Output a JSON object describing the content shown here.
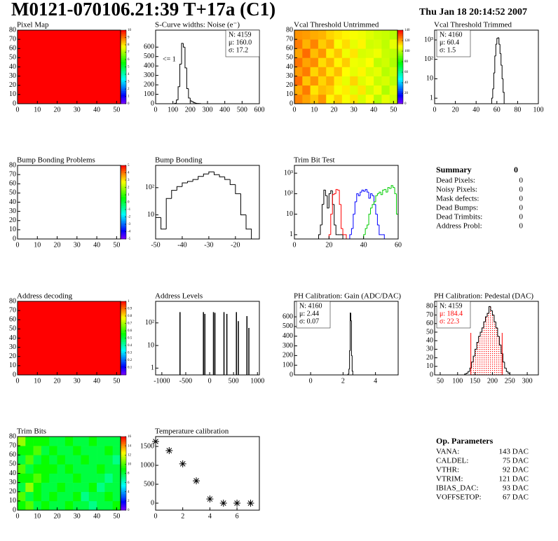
{
  "header": {
    "title": "M0121-070106.21:39 T+17a (C1)",
    "date": "Thu Jan 18 20:14:52 2007"
  },
  "chart_data": [
    {
      "type": "heatmap",
      "title": "Pixel Map",
      "xlim": [
        0,
        52
      ],
      "ylim": [
        0,
        80
      ],
      "xticks": [
        0,
        10,
        20,
        30,
        40,
        50
      ],
      "yticks": [
        0,
        10,
        20,
        30,
        40,
        50,
        60,
        70,
        80
      ],
      "zlim": [
        0,
        10
      ],
      "zticks": [
        0,
        1,
        2,
        3,
        4,
        5,
        6,
        7,
        8,
        9,
        10
      ],
      "z": [
        [
          10
        ]
      ]
    },
    {
      "type": "histogram",
      "title": "S-Curve widths: Noise (e⁻)",
      "xlim": [
        0,
        600
      ],
      "ylim": [
        0,
        780
      ],
      "xticks": [
        0,
        100,
        200,
        300,
        400,
        500,
        600
      ],
      "yticks": [
        0,
        100,
        200,
        300,
        400,
        500,
        600
      ],
      "color": "#000000",
      "bins": [
        110,
        120,
        130,
        140,
        150,
        160,
        170,
        180,
        190,
        200,
        210,
        220,
        230,
        240,
        250,
        260
      ],
      "values": [
        5,
        40,
        180,
        420,
        640,
        600,
        380,
        160,
        60,
        30,
        20,
        10,
        5,
        3,
        2
      ],
      "stats": [
        {
          "text": "N: 4159"
        },
        {
          "text": "μ: 160.0"
        },
        {
          "text": "σ: 17.2"
        }
      ],
      "annotation": "<= 1"
    },
    {
      "type": "heatmap",
      "title": "Vcal Threshold Untrimmed",
      "xlim": [
        0,
        52
      ],
      "ylim": [
        0,
        80
      ],
      "xticks": [
        0,
        10,
        20,
        30,
        40,
        50
      ],
      "yticks": [
        0,
        10,
        20,
        30,
        40,
        50,
        60,
        70,
        80
      ],
      "zlim": [
        0,
        140
      ],
      "zticks": [
        0,
        20,
        40,
        60,
        80,
        100,
        120,
        140
      ],
      "z": [
        [
          124,
          120,
          116,
          122,
          110,
          115,
          108,
          112,
          104,
          109,
          100,
          106,
          103
        ],
        [
          119,
          125,
          112,
          117,
          115,
          108,
          111,
          105,
          112,
          103,
          107,
          99,
          105
        ],
        [
          127,
          116,
          122,
          114,
          119,
          111,
          106,
          114,
          105,
          108,
          102,
          104,
          101
        ],
        [
          121,
          125,
          114,
          120,
          112,
          117,
          109,
          106,
          110,
          104,
          106,
          100,
          103
        ],
        [
          126,
          120,
          123,
          113,
          118,
          110,
          115,
          107,
          106,
          109,
          101,
          103,
          99
        ],
        [
          120,
          127,
          117,
          122,
          111,
          116,
          107,
          112,
          104,
          105,
          107,
          102,
          101
        ],
        [
          125,
          118,
          124,
          115,
          119,
          108,
          113,
          106,
          110,
          103,
          104,
          101,
          106
        ],
        [
          122,
          121,
          119,
          118,
          114,
          112,
          110,
          108,
          107,
          105,
          103,
          102,
          100
        ]
      ]
    },
    {
      "type": "histogram",
      "title": "Vcal Threshold Trimmed",
      "log_y": true,
      "xlim": [
        0,
        100
      ],
      "ylim": [
        0.52,
        3200
      ],
      "xticks": [
        0,
        20,
        40,
        60,
        80,
        100
      ],
      "yticks": [
        1,
        10,
        {
          "value": 100,
          "label": "10²"
        },
        {
          "value": 1000,
          "label": "10³"
        }
      ],
      "color": "#000000",
      "bins": [
        55,
        56,
        57,
        58,
        59,
        60,
        61,
        62,
        63,
        64,
        65,
        66,
        67
      ],
      "values": [
        1,
        3,
        20,
        150,
        600,
        1200,
        1300,
        600,
        200,
        50,
        10,
        2
      ],
      "stats": [
        {
          "text": "N: 4160"
        },
        {
          "text": "μ: 60.4"
        },
        {
          "text": "σ:  1.5"
        }
      ]
    },
    {
      "type": "heatmap",
      "title": "Bump Bonding Problems",
      "xlim": [
        0,
        52
      ],
      "ylim": [
        0,
        80
      ],
      "xticks": [
        0,
        10,
        20,
        30,
        40,
        50
      ],
      "yticks": [
        0,
        10,
        20,
        30,
        40,
        50,
        60,
        70,
        80
      ],
      "zlim": [
        -5,
        5
      ],
      "zticks": [
        -5,
        -4,
        -3,
        -2,
        -1,
        0,
        1,
        2,
        3,
        4,
        5
      ]
    },
    {
      "type": "histogram",
      "title": "Bump Bonding",
      "log_y": true,
      "xlim": [
        -50,
        -11
      ],
      "ylim": [
        1.3,
        660
      ],
      "xticks": [
        -50,
        -40,
        -30,
        -20
      ],
      "yticks": [
        10,
        {
          "value": 100,
          "label": "10²"
        }
      ],
      "color": "#000000",
      "bins": [
        -50,
        -48,
        -46,
        -44,
        -42,
        -40,
        -38,
        -36,
        -34,
        -32,
        -30,
        -28,
        -26,
        -24,
        -22,
        -20,
        -18,
        -16,
        -14
      ],
      "values": [
        8,
        3,
        40,
        80,
        110,
        150,
        170,
        200,
        260,
        320,
        380,
        300,
        250,
        200,
        130,
        60,
        10,
        3
      ]
    },
    {
      "type": "histogram",
      "title": "Trim Bit Test",
      "log_y": true,
      "xlim": [
        0,
        60
      ],
      "ylim": [
        0.62,
        2400
      ],
      "xticks": [
        0,
        20,
        40,
        60
      ],
      "yticks": [
        1,
        10,
        {
          "value": 100,
          "label": "10²"
        },
        {
          "value": 1000,
          "label": "10³"
        }
      ],
      "series": [
        {
          "color": "#000000",
          "bins": [
            14,
            15,
            16,
            17,
            18,
            19,
            20,
            21,
            22,
            23,
            24,
            25,
            26,
            27,
            28
          ],
          "values": [
            1,
            3,
            30,
            150,
            80,
            20,
            100,
            140,
            30,
            3,
            1,
            1,
            1,
            1
          ]
        },
        {
          "color": "#ff0000",
          "bins": [
            20,
            21,
            22,
            23,
            24,
            25,
            26,
            27,
            28,
            29,
            30
          ],
          "values": [
            1,
            10,
            90,
            100,
            160,
            150,
            30,
            2,
            1,
            1
          ]
        },
        {
          "color": "#0000ff",
          "bins": [
            32,
            33,
            34,
            35,
            36,
            37,
            38,
            39,
            40,
            41,
            42,
            43,
            44,
            45,
            46,
            47,
            48,
            49,
            50,
            51,
            52
          ],
          "values": [
            1,
            2,
            10,
            40,
            100,
            80,
            120,
            150,
            130,
            160,
            120,
            60,
            100,
            80,
            30,
            10,
            3,
            1,
            1,
            1
          ]
        },
        {
          "color": "#00cc00",
          "bins": [
            40,
            41,
            42,
            43,
            44,
            45,
            46,
            47,
            48,
            49,
            50,
            51,
            52,
            53,
            54,
            55,
            56,
            57,
            58,
            59,
            60
          ],
          "values": [
            1,
            2,
            3,
            10,
            20,
            30,
            40,
            80,
            100,
            120,
            90,
            150,
            160,
            120,
            200,
            180,
            250,
            200,
            100,
            10
          ]
        }
      ]
    },
    {
      "type": "heatmap",
      "title": "Address decoding",
      "xlim": [
        0,
        52
      ],
      "ylim": [
        0,
        80
      ],
      "xticks": [
        0,
        10,
        20,
        30,
        40,
        50
      ],
      "yticks": [
        0,
        10,
        20,
        30,
        40,
        50,
        60,
        70,
        80
      ],
      "zlim": [
        0,
        1
      ],
      "zticks": [
        0.1,
        0.2,
        0.3,
        0.4,
        0.5,
        0.6,
        0.7,
        0.8,
        0.9,
        1
      ],
      "z": [
        [
          1
        ]
      ]
    },
    {
      "type": "spike",
      "title": "Address Levels",
      "log_y": true,
      "xlim": [
        -1130,
        1040
      ],
      "ylim": [
        0.5,
        900
      ],
      "xticks": [
        -1000,
        -500,
        0,
        500,
        1000
      ],
      "yticks": [
        1,
        10,
        {
          "value": 100,
          "label": "10²"
        }
      ],
      "color": "#000000",
      "x": [
        -620,
        -130,
        -100,
        80,
        110,
        300,
        360,
        560,
        600,
        780,
        820
      ],
      "values": [
        300,
        300,
        250,
        300,
        280,
        300,
        250,
        300,
        120,
        200,
        60
      ]
    },
    {
      "type": "histogram",
      "title": "PH Calibration: Gain (ADC/DAC)",
      "xlim": [
        -1,
        5.4
      ],
      "ylim": [
        0,
        760
      ],
      "xticks": [
        0,
        2,
        4
      ],
      "yticks": [
        0,
        100,
        200,
        300,
        400,
        500,
        600
      ],
      "color": "#000000",
      "bins": [
        2.28,
        2.32,
        2.36,
        2.4,
        2.44,
        2.48,
        2.52,
        2.56,
        2.6
      ],
      "values": [
        2,
        10,
        60,
        250,
        640,
        560,
        200,
        40
      ],
      "stats": [
        {
          "text": "N: 4160"
        },
        {
          "text": "μ: 2.44"
        },
        {
          "text": "σ: 0.07"
        }
      ]
    },
    {
      "type": "histogram",
      "title": "PH Calibration: Pedestal (DAC)",
      "xlim": [
        34,
        332
      ],
      "ylim": [
        0,
        86
      ],
      "xticks": [
        50,
        100,
        150,
        200,
        250,
        300
      ],
      "yticks": [
        0,
        10,
        20,
        30,
        40,
        50,
        60,
        70,
        80
      ],
      "color": "#000000",
      "bins": [
        120,
        125,
        130,
        135,
        140,
        145,
        150,
        155,
        160,
        165,
        170,
        175,
        180,
        185,
        190,
        195,
        200,
        205,
        210,
        215,
        220,
        225,
        230,
        235,
        240,
        245,
        250
      ],
      "values": [
        1,
        2,
        4,
        8,
        15,
        22,
        30,
        38,
        45,
        50,
        55,
        62,
        68,
        72,
        80,
        75,
        70,
        62,
        55,
        45,
        35,
        25,
        15,
        8,
        4,
        2
      ],
      "cuts": [
        138,
        228
      ],
      "cut_color": "#ff0000",
      "stats": [
        {
          "text": "N: 4159"
        },
        {
          "text": "μ: 184.4",
          "color": "#ff0000"
        },
        {
          "text": "σ: 22.3",
          "color": "#ff0000"
        }
      ]
    },
    {
      "type": "heatmap",
      "title": "Trim Bits",
      "xlim": [
        0,
        52
      ],
      "ylim": [
        0,
        80
      ],
      "xticks": [
        0,
        10,
        20,
        30,
        40,
        50
      ],
      "yticks": [
        0,
        10,
        20,
        30,
        40,
        50,
        60,
        70,
        80
      ],
      "zlim": [
        0,
        16
      ],
      "zticks": [
        0,
        2,
        4,
        6,
        8,
        10,
        12,
        14,
        16
      ],
      "z": [
        [
          9,
          10,
          8,
          9,
          8,
          8,
          9,
          8,
          8,
          7,
          8,
          8,
          9
        ],
        [
          10,
          8,
          9,
          8,
          9,
          8,
          8,
          9,
          7,
          8,
          8,
          9,
          8
        ],
        [
          8,
          11,
          9,
          8,
          8,
          9,
          8,
          8,
          8,
          9,
          7,
          8,
          8
        ],
        [
          9,
          9,
          10,
          9,
          8,
          8,
          8,
          9,
          8,
          8,
          8,
          7,
          8
        ],
        [
          10,
          8,
          9,
          9,
          9,
          8,
          9,
          8,
          8,
          8,
          9,
          8,
          8
        ],
        [
          8,
          10,
          8,
          9,
          8,
          9,
          8,
          8,
          9,
          8,
          8,
          8,
          7
        ],
        [
          9,
          9,
          10,
          8,
          9,
          8,
          8,
          9,
          8,
          8,
          8,
          9,
          8
        ],
        [
          11,
          9,
          9,
          9,
          8,
          8,
          9,
          8,
          8,
          9,
          8,
          8,
          8
        ]
      ]
    },
    {
      "type": "scatter",
      "title": "Temperature calibration",
      "xlim": [
        0,
        7.65
      ],
      "ylim": [
        -185,
        1760
      ],
      "xticks": [
        0,
        2,
        4,
        6
      ],
      "yticks": [
        0,
        500,
        1000,
        1500
      ],
      "color": "#000000",
      "x": [
        0,
        1,
        2,
        3,
        4,
        5,
        6,
        7
      ],
      "values": [
        1630,
        1390,
        1040,
        590,
        110,
        0,
        0,
        0
      ]
    }
  ],
  "summary": {
    "title": "Summary",
    "total": 0,
    "rows": [
      {
        "label": "Dead Pixels:",
        "value": 0
      },
      {
        "label": "Noisy Pixels:",
        "value": 0
      },
      {
        "label": "Mask defects:",
        "value": 0
      },
      {
        "label": "Dead Bumps:",
        "value": 0
      },
      {
        "label": "Dead Trimbits:",
        "value": 0
      },
      {
        "label": "Address Probl:",
        "value": 0
      }
    ]
  },
  "op_parameters": {
    "title": "Op. Parameters",
    "rows": [
      {
        "label": "VANA:",
        "value": "143 DAC"
      },
      {
        "label": "CALDEL:",
        "value": "75 DAC"
      },
      {
        "label": "VTHR:",
        "value": "92 DAC"
      },
      {
        "label": "VTRIM:",
        "value": "121 DAC"
      },
      {
        "label": "IBIAS_DAC:",
        "value": "93 DAC"
      },
      {
        "label": "VOFFSETOP:",
        "value": "67 DAC"
      }
    ]
  }
}
